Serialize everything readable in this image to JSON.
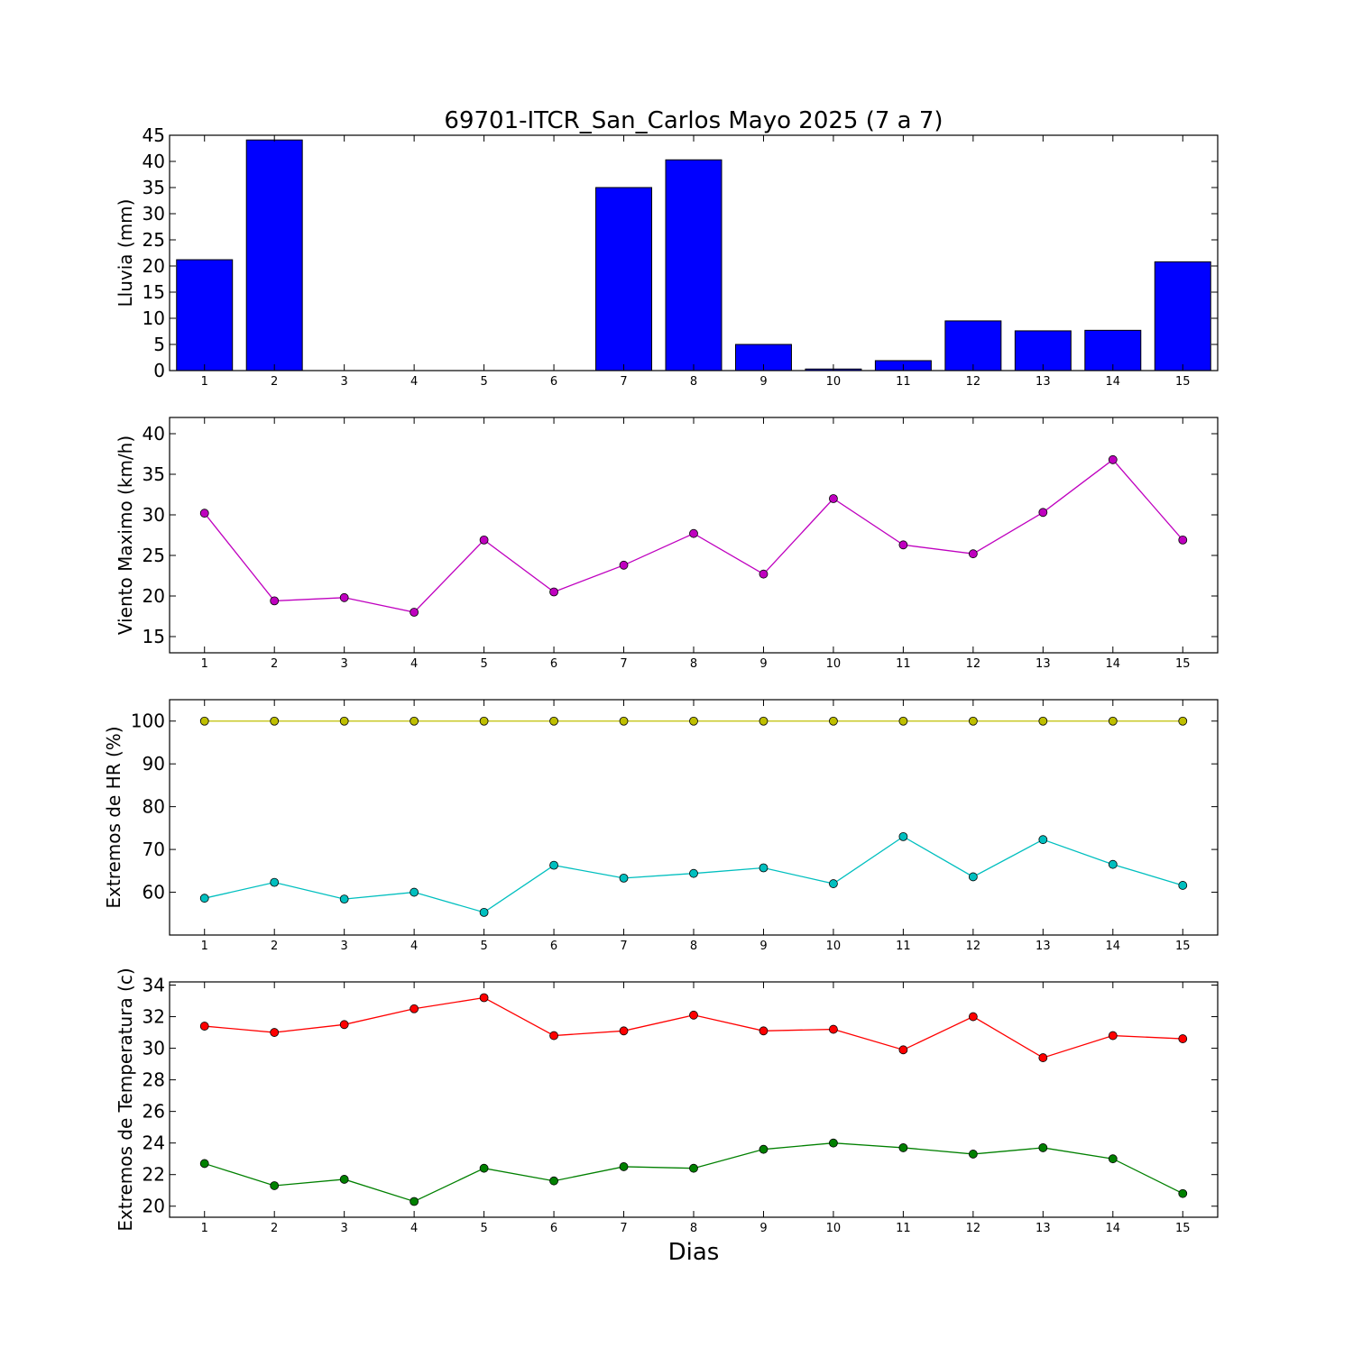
{
  "title": "69701-ITCR_San_Carlos Mayo 2025  (7 a 7)",
  "xlabel": "Dias",
  "chart_data": [
    {
      "type": "bar",
      "ylabel": "Lluvia (mm)",
      "x": [
        1,
        2,
        3,
        4,
        5,
        6,
        7,
        8,
        9,
        10,
        11,
        12,
        13,
        14,
        15
      ],
      "series": [
        {
          "color": "#0000ff",
          "values": [
            21.2,
            44.1,
            0,
            0,
            0,
            0,
            35.0,
            40.3,
            5.0,
            0.3,
            1.9,
            9.5,
            7.6,
            7.7,
            20.8
          ]
        }
      ],
      "ylim": [
        0,
        45
      ],
      "yticks": [
        0,
        5,
        10,
        15,
        20,
        25,
        30,
        35,
        40,
        45
      ],
      "xlim": [
        0.5,
        15.5
      ],
      "xticks": [
        1,
        2,
        3,
        4,
        5,
        6,
        7,
        8,
        9,
        10,
        11,
        12,
        13,
        14,
        15
      ]
    },
    {
      "type": "line",
      "ylabel": "Viento Maximo (km/h)",
      "x": [
        1,
        2,
        3,
        4,
        5,
        6,
        7,
        8,
        9,
        10,
        11,
        12,
        13,
        14,
        15
      ],
      "series": [
        {
          "color": "#bf00bf",
          "values": [
            30.2,
            19.4,
            19.8,
            18.0,
            26.9,
            20.5,
            23.8,
            27.7,
            22.7,
            32.0,
            26.3,
            25.2,
            30.3,
            36.8,
            26.9
          ]
        }
      ],
      "ylim": [
        13,
        42
      ],
      "yticks": [
        15,
        20,
        25,
        30,
        35,
        40
      ],
      "xlim": [
        0.5,
        15.5
      ],
      "xticks": [
        1,
        2,
        3,
        4,
        5,
        6,
        7,
        8,
        9,
        10,
        11,
        12,
        13,
        14,
        15
      ]
    },
    {
      "type": "line",
      "ylabel": "Extremos de HR (%)",
      "x": [
        1,
        2,
        3,
        4,
        5,
        6,
        7,
        8,
        9,
        10,
        11,
        12,
        13,
        14,
        15
      ],
      "series": [
        {
          "color": "#bfbf00",
          "values": [
            100,
            100,
            100,
            100,
            100,
            100,
            100,
            100,
            100,
            100,
            100,
            100,
            100,
            100,
            100
          ]
        },
        {
          "color": "#00bfbf",
          "values": [
            58.6,
            62.3,
            58.4,
            60.0,
            55.3,
            66.3,
            63.3,
            64.4,
            65.7,
            62.0,
            73.0,
            63.6,
            72.3,
            66.5,
            61.6
          ]
        }
      ],
      "ylim": [
        50,
        105
      ],
      "yticks": [
        60,
        70,
        80,
        90,
        100
      ],
      "xlim": [
        0.5,
        15.5
      ],
      "xticks": [
        1,
        2,
        3,
        4,
        5,
        6,
        7,
        8,
        9,
        10,
        11,
        12,
        13,
        14,
        15
      ]
    },
    {
      "type": "line",
      "ylabel": "Extremos de Temperatura (c)",
      "x": [
        1,
        2,
        3,
        4,
        5,
        6,
        7,
        8,
        9,
        10,
        11,
        12,
        13,
        14,
        15
      ],
      "series": [
        {
          "color": "#ff0000",
          "values": [
            31.4,
            31.0,
            31.5,
            32.5,
            33.2,
            30.8,
            31.1,
            32.1,
            31.1,
            31.2,
            29.9,
            32.0,
            29.4,
            30.8,
            30.6
          ]
        },
        {
          "color": "#008000",
          "values": [
            22.7,
            21.3,
            21.7,
            20.3,
            22.4,
            21.6,
            22.5,
            22.4,
            23.6,
            24.0,
            23.7,
            23.3,
            23.7,
            23.0,
            20.8
          ]
        }
      ],
      "ylim": [
        19.3,
        34.2
      ],
      "yticks": [
        20,
        22,
        24,
        26,
        28,
        30,
        32,
        34
      ],
      "xlim": [
        0.5,
        15.5
      ],
      "xticks": [
        1,
        2,
        3,
        4,
        5,
        6,
        7,
        8,
        9,
        10,
        11,
        12,
        13,
        14,
        15
      ]
    }
  ]
}
